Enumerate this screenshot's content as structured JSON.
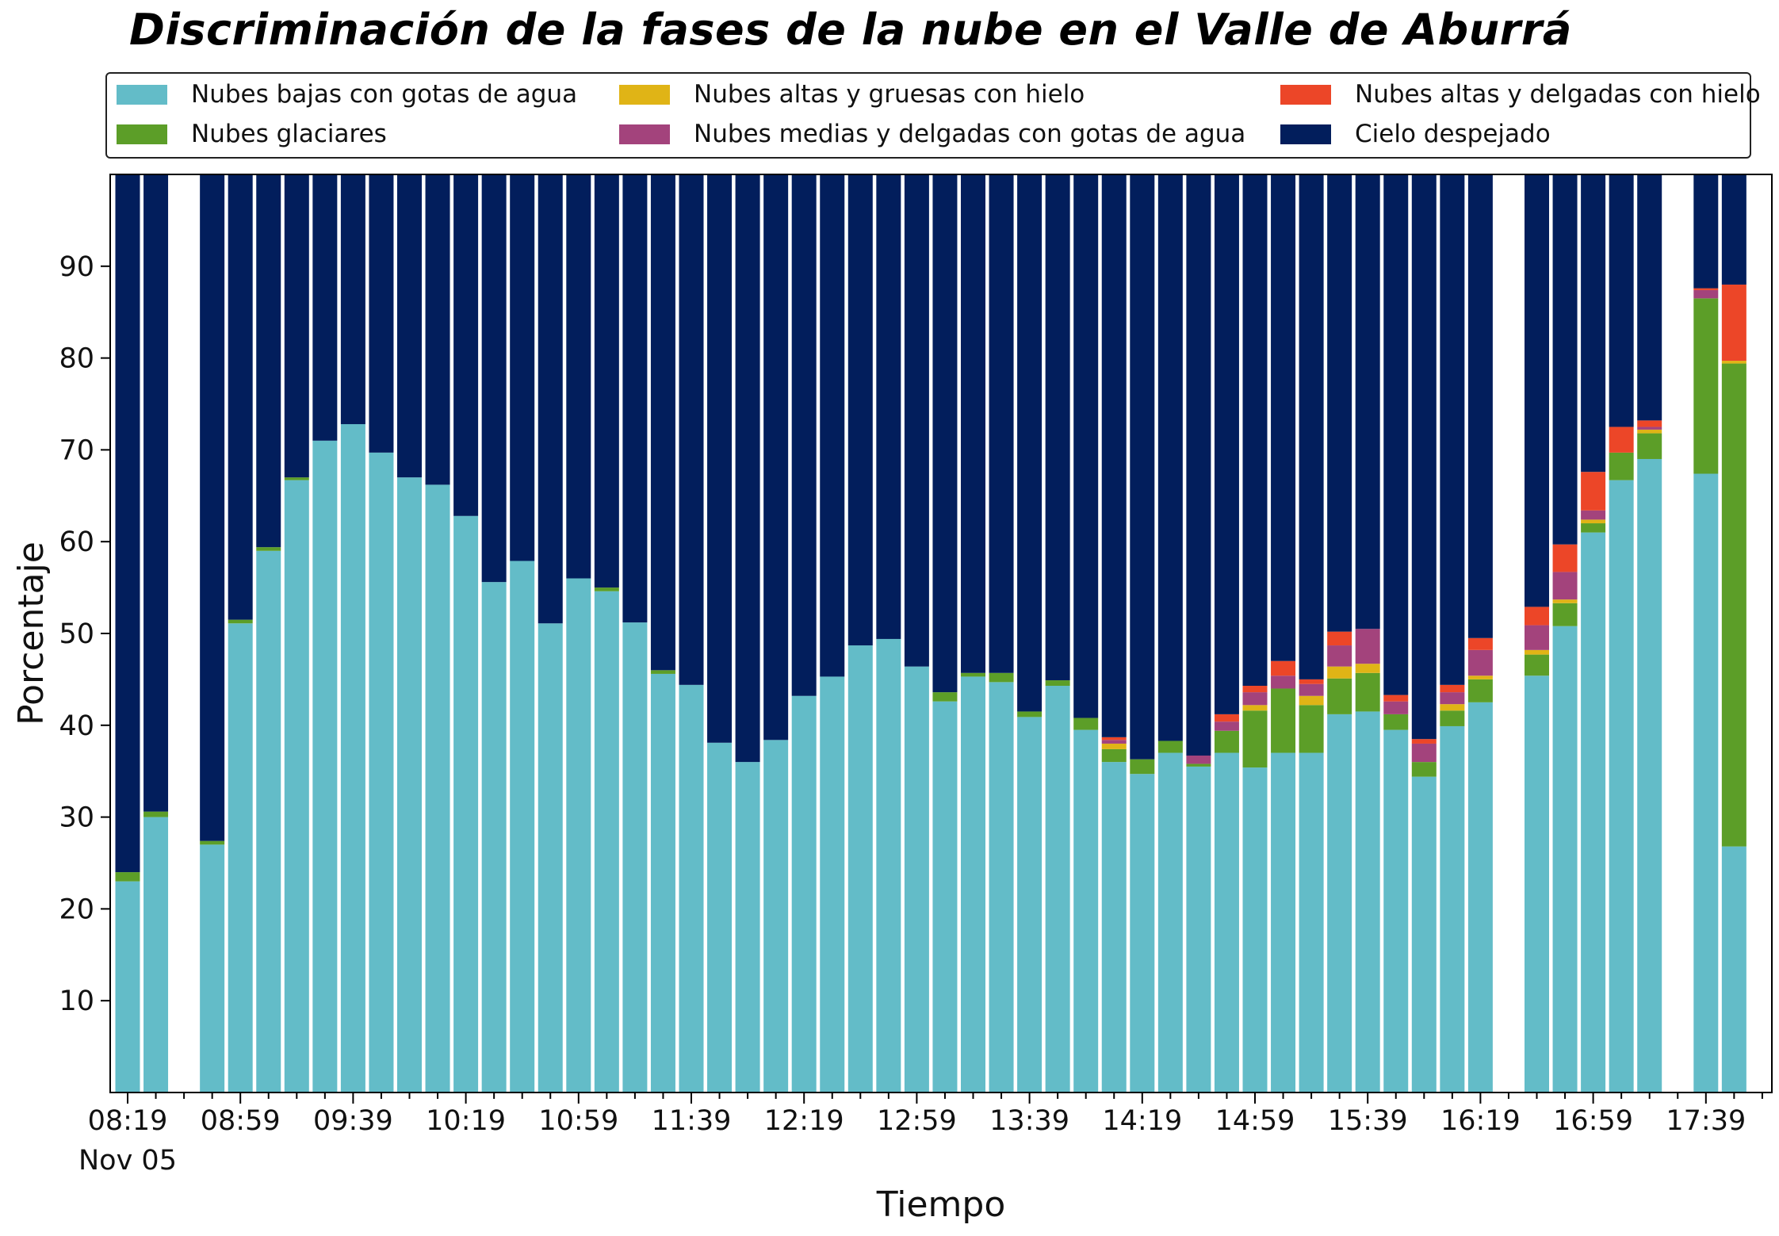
{
  "chart_data": {
    "type": "bar",
    "stacked": true,
    "title": "Discriminación de la fases de la nube en el Valle de Aburrá",
    "xlabel": "Tiempo",
    "ylabel": "Porcentaje",
    "ylim": [
      0,
      100
    ],
    "y_ticks": [
      10,
      20,
      30,
      40,
      50,
      60,
      70,
      80,
      90
    ],
    "x_tick_labels": [
      "08:19",
      "08:59",
      "09:39",
      "10:19",
      "10:59",
      "11:39",
      "12:19",
      "12:59",
      "13:39",
      "14:19",
      "14:59",
      "15:39",
      "16:19",
      "16:59",
      "17:39"
    ],
    "x_sub_label": "Nov 05",
    "time_start": "08:19",
    "time_step_minutes": 10,
    "legend_position": "top",
    "colors": {
      "low_water": "#63bcc8",
      "glacial": "#5c9e28",
      "high_thick_ice": "#e0b416",
      "mid_thin_water": "#a3437c",
      "high_thin_ice": "#ec4628",
      "clear": "#021e5c"
    },
    "series": [
      {
        "key": "low_water",
        "name": "Nubes bajas con gotas de agua"
      },
      {
        "key": "glacial",
        "name": "Nubes glaciares"
      },
      {
        "key": "high_thick_ice",
        "name": "Nubes altas y gruesas con hielo"
      },
      {
        "key": "mid_thin_water",
        "name": "Nubes medias y delgadas con gotas de agua"
      },
      {
        "key": "high_thin_ice",
        "name": "Nubes altas y delgadas con hielo"
      },
      {
        "key": "clear",
        "name": "Cielo despejado"
      }
    ],
    "bars": [
      {
        "time": "08:19",
        "low_water": 23,
        "glacial": 1,
        "high_thick_ice": 0,
        "mid_thin_water": 0,
        "high_thin_ice": 0
      },
      {
        "time": "08:29",
        "low_water": 30,
        "glacial": 0.6,
        "high_thick_ice": 0,
        "mid_thin_water": 0,
        "high_thin_ice": 0
      },
      {
        "time": "08:49",
        "low_water": 27,
        "glacial": 0.4,
        "high_thick_ice": 0,
        "mid_thin_water": 0,
        "high_thin_ice": 0
      },
      {
        "time": "08:59",
        "low_water": 51.1,
        "glacial": 0.4,
        "high_thick_ice": 0,
        "mid_thin_water": 0,
        "high_thin_ice": 0
      },
      {
        "time": "09:09",
        "low_water": 59,
        "glacial": 0.4,
        "high_thick_ice": 0,
        "mid_thin_water": 0,
        "high_thin_ice": 0
      },
      {
        "time": "09:19",
        "low_water": 66.7,
        "glacial": 0.3,
        "high_thick_ice": 0,
        "mid_thin_water": 0,
        "high_thin_ice": 0
      },
      {
        "time": "09:29",
        "low_water": 71,
        "glacial": 0,
        "high_thick_ice": 0,
        "mid_thin_water": 0,
        "high_thin_ice": 0
      },
      {
        "time": "09:39",
        "low_water": 72.8,
        "glacial": 0,
        "high_thick_ice": 0,
        "mid_thin_water": 0,
        "high_thin_ice": 0
      },
      {
        "time": "09:49",
        "low_water": 69.7,
        "glacial": 0,
        "high_thick_ice": 0,
        "mid_thin_water": 0,
        "high_thin_ice": 0
      },
      {
        "time": "09:59",
        "low_water": 67,
        "glacial": 0,
        "high_thick_ice": 0,
        "mid_thin_water": 0,
        "high_thin_ice": 0
      },
      {
        "time": "10:09",
        "low_water": 66.2,
        "glacial": 0,
        "high_thick_ice": 0,
        "mid_thin_water": 0,
        "high_thin_ice": 0
      },
      {
        "time": "10:19",
        "low_water": 62.8,
        "glacial": 0,
        "high_thick_ice": 0,
        "mid_thin_water": 0,
        "high_thin_ice": 0
      },
      {
        "time": "10:29",
        "low_water": 55.6,
        "glacial": 0,
        "high_thick_ice": 0,
        "mid_thin_water": 0,
        "high_thin_ice": 0
      },
      {
        "time": "10:39",
        "low_water": 57.9,
        "glacial": 0,
        "high_thick_ice": 0,
        "mid_thin_water": 0,
        "high_thin_ice": 0
      },
      {
        "time": "10:49",
        "low_water": 51.1,
        "glacial": 0,
        "high_thick_ice": 0,
        "mid_thin_water": 0,
        "high_thin_ice": 0
      },
      {
        "time": "10:59",
        "low_water": 56,
        "glacial": 0,
        "high_thick_ice": 0,
        "mid_thin_water": 0,
        "high_thin_ice": 0
      },
      {
        "time": "11:09",
        "low_water": 54.6,
        "glacial": 0.4,
        "high_thick_ice": 0,
        "mid_thin_water": 0,
        "high_thin_ice": 0
      },
      {
        "time": "11:19",
        "low_water": 51.2,
        "glacial": 0,
        "high_thick_ice": 0,
        "mid_thin_water": 0,
        "high_thin_ice": 0
      },
      {
        "time": "11:29",
        "low_water": 45.6,
        "glacial": 0.4,
        "high_thick_ice": 0,
        "mid_thin_water": 0,
        "high_thin_ice": 0
      },
      {
        "time": "11:39",
        "low_water": 44.4,
        "glacial": 0,
        "high_thick_ice": 0,
        "mid_thin_water": 0,
        "high_thin_ice": 0
      },
      {
        "time": "11:49",
        "low_water": 38.1,
        "glacial": 0,
        "high_thick_ice": 0,
        "mid_thin_water": 0,
        "high_thin_ice": 0
      },
      {
        "time": "11:59",
        "low_water": 36,
        "glacial": 0,
        "high_thick_ice": 0,
        "mid_thin_water": 0,
        "high_thin_ice": 0
      },
      {
        "time": "12:09",
        "low_water": 38.4,
        "glacial": 0,
        "high_thick_ice": 0,
        "mid_thin_water": 0,
        "high_thin_ice": 0
      },
      {
        "time": "12:19",
        "low_water": 43.2,
        "glacial": 0,
        "high_thick_ice": 0,
        "mid_thin_water": 0,
        "high_thin_ice": 0
      },
      {
        "time": "12:29",
        "low_water": 45.3,
        "glacial": 0,
        "high_thick_ice": 0,
        "mid_thin_water": 0,
        "high_thin_ice": 0
      },
      {
        "time": "12:39",
        "low_water": 48.7,
        "glacial": 0,
        "high_thick_ice": 0,
        "mid_thin_water": 0,
        "high_thin_ice": 0
      },
      {
        "time": "12:49",
        "low_water": 49.4,
        "glacial": 0,
        "high_thick_ice": 0,
        "mid_thin_water": 0,
        "high_thin_ice": 0
      },
      {
        "time": "12:59",
        "low_water": 46.4,
        "glacial": 0,
        "high_thick_ice": 0,
        "mid_thin_water": 0,
        "high_thin_ice": 0
      },
      {
        "time": "13:09",
        "low_water": 42.6,
        "glacial": 1,
        "high_thick_ice": 0,
        "mid_thin_water": 0,
        "high_thin_ice": 0
      },
      {
        "time": "13:19",
        "low_water": 45.3,
        "glacial": 0.4,
        "high_thick_ice": 0,
        "mid_thin_water": 0,
        "high_thin_ice": 0
      },
      {
        "time": "13:29",
        "low_water": 44.7,
        "glacial": 1,
        "high_thick_ice": 0,
        "mid_thin_water": 0,
        "high_thin_ice": 0
      },
      {
        "time": "13:39",
        "low_water": 40.9,
        "glacial": 0.6,
        "high_thick_ice": 0,
        "mid_thin_water": 0,
        "high_thin_ice": 0
      },
      {
        "time": "13:49",
        "low_water": 44.3,
        "glacial": 0.6,
        "high_thick_ice": 0,
        "mid_thin_water": 0,
        "high_thin_ice": 0
      },
      {
        "time": "13:59",
        "low_water": 39.5,
        "glacial": 1.3,
        "high_thick_ice": 0,
        "mid_thin_water": 0,
        "high_thin_ice": 0
      },
      {
        "time": "14:09",
        "low_water": 36,
        "glacial": 1.4,
        "high_thick_ice": 0.6,
        "mid_thin_water": 0.4,
        "high_thin_ice": 0.3
      },
      {
        "time": "14:19",
        "low_water": 34.7,
        "glacial": 1.6,
        "high_thick_ice": 0,
        "mid_thin_water": 0,
        "high_thin_ice": 0
      },
      {
        "time": "14:29",
        "low_water": 37,
        "glacial": 1.3,
        "high_thick_ice": 0,
        "mid_thin_water": 0,
        "high_thin_ice": 0
      },
      {
        "time": "14:39",
        "low_water": 35.5,
        "glacial": 0.3,
        "high_thick_ice": 0,
        "mid_thin_water": 0.9,
        "high_thin_ice": 0
      },
      {
        "time": "14:49",
        "low_water": 37,
        "glacial": 2.4,
        "high_thick_ice": 0,
        "mid_thin_water": 1,
        "high_thin_ice": 0.8
      },
      {
        "time": "14:59",
        "low_water": 35.4,
        "glacial": 6.2,
        "high_thick_ice": 0.6,
        "mid_thin_water": 1.4,
        "high_thin_ice": 0.7
      },
      {
        "time": "15:09",
        "low_water": 37,
        "glacial": 7,
        "high_thick_ice": 0,
        "mid_thin_water": 1.4,
        "high_thin_ice": 1.6
      },
      {
        "time": "15:19",
        "low_water": 37,
        "glacial": 5.2,
        "high_thick_ice": 1,
        "mid_thin_water": 1.3,
        "high_thin_ice": 0.5
      },
      {
        "time": "15:29",
        "low_water": 41.2,
        "glacial": 3.9,
        "high_thick_ice": 1.3,
        "mid_thin_water": 2.3,
        "high_thin_ice": 1.5
      },
      {
        "time": "15:39",
        "low_water": 41.5,
        "glacial": 4.2,
        "high_thick_ice": 1,
        "mid_thin_water": 3.8,
        "high_thin_ice": 0
      },
      {
        "time": "15:49",
        "low_water": 39.5,
        "glacial": 1.7,
        "high_thick_ice": 0,
        "mid_thin_water": 1.4,
        "high_thin_ice": 0.7
      },
      {
        "time": "15:59",
        "low_water": 34.4,
        "glacial": 1.6,
        "high_thick_ice": 0,
        "mid_thin_water": 2,
        "high_thin_ice": 0.5
      },
      {
        "time": "16:09",
        "low_water": 39.9,
        "glacial": 1.7,
        "high_thick_ice": 0.7,
        "mid_thin_water": 1.3,
        "high_thin_ice": 0.8
      },
      {
        "time": "16:19",
        "low_water": 42.5,
        "glacial": 2.5,
        "high_thick_ice": 0.4,
        "mid_thin_water": 2.8,
        "high_thin_ice": 1.3
      },
      {
        "time": "16:39",
        "low_water": 45.4,
        "glacial": 2.3,
        "high_thick_ice": 0.5,
        "mid_thin_water": 2.7,
        "high_thin_ice": 2
      },
      {
        "time": "16:49",
        "low_water": 50.8,
        "glacial": 2.5,
        "high_thick_ice": 0.4,
        "mid_thin_water": 3,
        "high_thin_ice": 3
      },
      {
        "time": "16:59",
        "low_water": 61,
        "glacial": 1,
        "high_thick_ice": 0.4,
        "mid_thin_water": 1,
        "high_thin_ice": 4.2
      },
      {
        "time": "17:09",
        "low_water": 66.7,
        "glacial": 3,
        "high_thick_ice": 0,
        "mid_thin_water": 0,
        "high_thin_ice": 2.8
      },
      {
        "time": "17:19",
        "low_water": 69,
        "glacial": 2.8,
        "high_thick_ice": 0.4,
        "mid_thin_water": 0.3,
        "high_thin_ice": 0.7
      },
      {
        "time": "17:39",
        "low_water": 67.4,
        "glacial": 19.1,
        "high_thick_ice": 0,
        "mid_thin_water": 0.9,
        "high_thin_ice": 0.2
      },
      {
        "time": "17:49",
        "low_water": 26.8,
        "glacial": 52.6,
        "high_thick_ice": 0.3,
        "mid_thin_water": 0,
        "high_thin_ice": 8.3
      }
    ]
  }
}
